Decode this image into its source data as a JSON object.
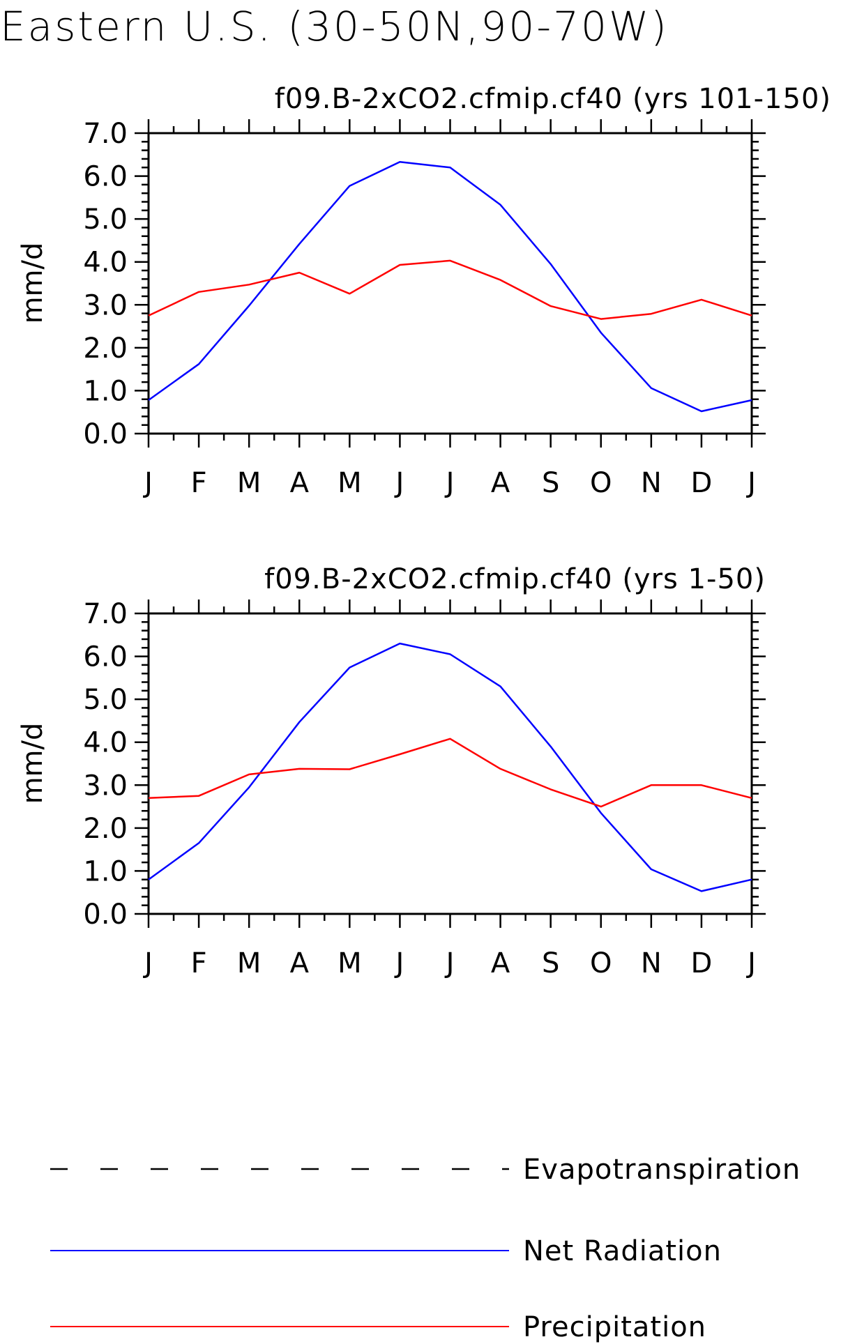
{
  "title": "Eastern U.S. (30-50N,90-70W)",
  "colors": {
    "Evapotranspiration": "#000000",
    "Net Radiation": "#0000ff",
    "Precipitation": "#ff0000"
  },
  "legend": [
    {
      "name": "Evapotranspiration",
      "style": "dashed",
      "color_key": "Evapotranspiration"
    },
    {
      "name": "Net Radiation",
      "style": "solid",
      "color_key": "Net Radiation"
    },
    {
      "name": "Precipitation",
      "style": "solid",
      "color_key": "Precipitation"
    }
  ],
  "chart_data": [
    {
      "type": "line",
      "title": "f09.B-2xCO2.cfmip.cf40 (yrs 101-150)",
      "ylabel": "mm/d",
      "xlabel": "",
      "categories": [
        "J",
        "F",
        "M",
        "A",
        "M",
        "J",
        "J",
        "A",
        "S",
        "O",
        "N",
        "D",
        "J"
      ],
      "ylim": [
        0,
        7
      ],
      "yticks": [
        "0.0",
        "1.0",
        "2.0",
        "3.0",
        "4.0",
        "5.0",
        "6.0",
        "7.0"
      ],
      "grid": false,
      "series": [
        {
          "name": "Net Radiation",
          "values": [
            0.78,
            1.62,
            2.98,
            4.42,
            5.77,
            6.33,
            6.2,
            5.33,
            3.95,
            2.35,
            1.06,
            0.52,
            0.78
          ]
        },
        {
          "name": "Precipitation",
          "values": [
            2.75,
            3.3,
            3.47,
            3.75,
            3.26,
            3.93,
            4.03,
            3.58,
            2.97,
            2.67,
            2.79,
            3.12,
            2.75
          ]
        }
      ]
    },
    {
      "type": "line",
      "title": "f09.B-2xCO2.cfmip.cf40 (yrs 1-50)",
      "ylabel": "mm/d",
      "xlabel": "",
      "categories": [
        "J",
        "F",
        "M",
        "A",
        "M",
        "J",
        "J",
        "A",
        "S",
        "O",
        "N",
        "D",
        "J"
      ],
      "ylim": [
        0,
        7
      ],
      "yticks": [
        "0.0",
        "1.0",
        "2.0",
        "3.0",
        "4.0",
        "5.0",
        "6.0",
        "7.0"
      ],
      "grid": false,
      "series": [
        {
          "name": "Net Radiation",
          "values": [
            0.8,
            1.65,
            2.95,
            4.47,
            5.74,
            6.3,
            6.05,
            5.3,
            3.9,
            2.35,
            1.04,
            0.53,
            0.8
          ]
        },
        {
          "name": "Precipitation",
          "values": [
            2.7,
            2.75,
            3.25,
            3.38,
            3.37,
            3.72,
            4.08,
            3.38,
            2.9,
            2.5,
            3.0,
            3.0,
            2.7
          ]
        }
      ]
    }
  ]
}
